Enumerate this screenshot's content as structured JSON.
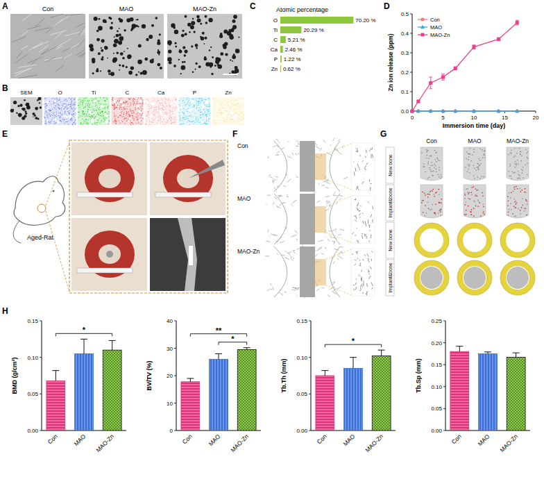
{
  "panels": {
    "labels": [
      "A",
      "B",
      "C",
      "D",
      "E",
      "F",
      "G",
      "H"
    ],
    "A": {
      "images": [
        "Con",
        "MAO",
        "MAO-Zn"
      ]
    },
    "B": {
      "images": [
        "SEM",
        "O",
        "Ti",
        "C",
        "Ca",
        "P",
        "Zn"
      ]
    },
    "E": {
      "label": "Aged-Rat"
    },
    "F": {
      "rows": [
        "Con",
        "MAO",
        "MAO-Zn"
      ]
    },
    "G": {
      "columns": [
        "Con",
        "MAO",
        "MAO-Zn"
      ],
      "rows": [
        "New bone",
        "Implant&bone",
        "New bone",
        "Implant&bone"
      ]
    }
  },
  "chart_data": [
    {
      "type": "bar",
      "orientation": "horizontal",
      "title": "Atomic percentage",
      "categories": [
        "O",
        "Ti",
        "C",
        "Ca",
        "P",
        "Zn"
      ],
      "values": [
        70.2,
        20.29,
        5.21,
        2.46,
        1.22,
        0.62
      ],
      "value_labels": [
        "70.20 %",
        "20.29 %",
        "5.21 %",
        "2.46 %",
        "1.22 %",
        "0.62 %"
      ],
      "data_labels": true,
      "color": "#8dc63f",
      "xlim": [
        0,
        80
      ],
      "tick_labels": false
    },
    {
      "type": "line",
      "xlabel": "Immersion time (day)",
      "ylabel": "Zn ion release (ppm)",
      "x": [
        0,
        1,
        3,
        5,
        7,
        10,
        14,
        17
      ],
      "series": [
        {
          "name": "Con",
          "color": "#f27b7b",
          "marker": "circle",
          "values": [
            0,
            0,
            0,
            0,
            0,
            0,
            0,
            0
          ]
        },
        {
          "name": "MAO",
          "color": "#3aa6dd",
          "marker": "triangle",
          "values": [
            0,
            0,
            0,
            0,
            0,
            0,
            0,
            0
          ]
        },
        {
          "name": "MAO-Zn",
          "color": "#e8418c",
          "marker": "square",
          "values": [
            0,
            0.05,
            0.145,
            0.175,
            0.22,
            0.33,
            0.37,
            0.455
          ],
          "errors": [
            0,
            0.006,
            0.03,
            0.015,
            0.008,
            0.01,
            0.008,
            0.012
          ]
        }
      ],
      "xlim": [
        0,
        20
      ],
      "xticks": [
        0,
        5,
        10,
        15,
        20
      ],
      "ylim": [
        0,
        0.5
      ],
      "yticks": [
        {
          "value": 0,
          "label": "0.0"
        },
        0.1,
        0.2,
        0.3,
        0.4,
        0.5
      ],
      "legend": "upper left"
    },
    {
      "type": "bar",
      "ylabel": "BMD (g/cm³)",
      "categories": [
        "Con",
        "MAO",
        "MAO-Zn"
      ],
      "values": [
        0.068,
        0.105,
        0.11
      ],
      "errors": [
        0.014,
        0.02,
        0.013
      ],
      "colors": [
        "#e0307a",
        "#3a6fd8",
        "#8ed14b"
      ],
      "ylim": [
        0,
        0.15
      ],
      "yticks": [
        {
          "value": 0,
          "label": "0.00"
        },
        0.05,
        {
          "value": 0.1,
          "label": "0.10"
        },
        0.15
      ],
      "significance": [
        {
          "label": "*",
          "groups": [
            0,
            2
          ]
        }
      ]
    },
    {
      "type": "bar",
      "ylabel": "BV/TV (%)",
      "categories": [
        "Con",
        "MAO",
        "MAO-Zn"
      ],
      "values": [
        17.8,
        26,
        29.5
      ],
      "errors": [
        1.2,
        2,
        0.7
      ],
      "colors": [
        "#e0307a",
        "#3a6fd8",
        "#8ed14b"
      ],
      "ylim": [
        0,
        40
      ],
      "yticks": [
        0,
        10,
        20,
        30,
        40
      ],
      "significance": [
        {
          "label": "*",
          "groups": [
            1,
            2
          ]
        },
        {
          "label": "**",
          "groups": [
            0,
            2
          ]
        }
      ]
    },
    {
      "type": "bar",
      "ylabel": "Tb.Th (mm)",
      "categories": [
        "Con",
        "MAO",
        "MAO-Zn"
      ],
      "values": [
        0.075,
        0.085,
        0.102
      ],
      "errors": [
        0.007,
        0.015,
        0.008
      ],
      "colors": [
        "#e0307a",
        "#3a6fd8",
        "#8ed14b"
      ],
      "ylim": [
        0,
        0.15
      ],
      "yticks": [
        {
          "value": 0,
          "label": "0.00"
        },
        0.05,
        {
          "value": 0.1,
          "label": "0.10"
        },
        0.15
      ],
      "significance": [
        {
          "label": "*",
          "groups": [
            0,
            2
          ]
        }
      ]
    },
    {
      "type": "bar",
      "ylabel": "Tb.Sp (mm)",
      "categories": [
        "Con",
        "MAO",
        "MAO-Zn"
      ],
      "values": [
        0.18,
        0.175,
        0.167
      ],
      "errors": [
        0.012,
        0.004,
        0.01
      ],
      "colors": [
        "#e0307a",
        "#3a6fd8",
        "#8ed14b"
      ],
      "ylim": [
        0,
        0.25
      ],
      "yticks": [
        {
          "value": 0,
          "label": "0.00"
        },
        0.05,
        {
          "value": 0.1,
          "label": "0.10"
        },
        0.15,
        {
          "value": 0.2,
          "label": "0.20"
        },
        0.25
      ]
    }
  ]
}
